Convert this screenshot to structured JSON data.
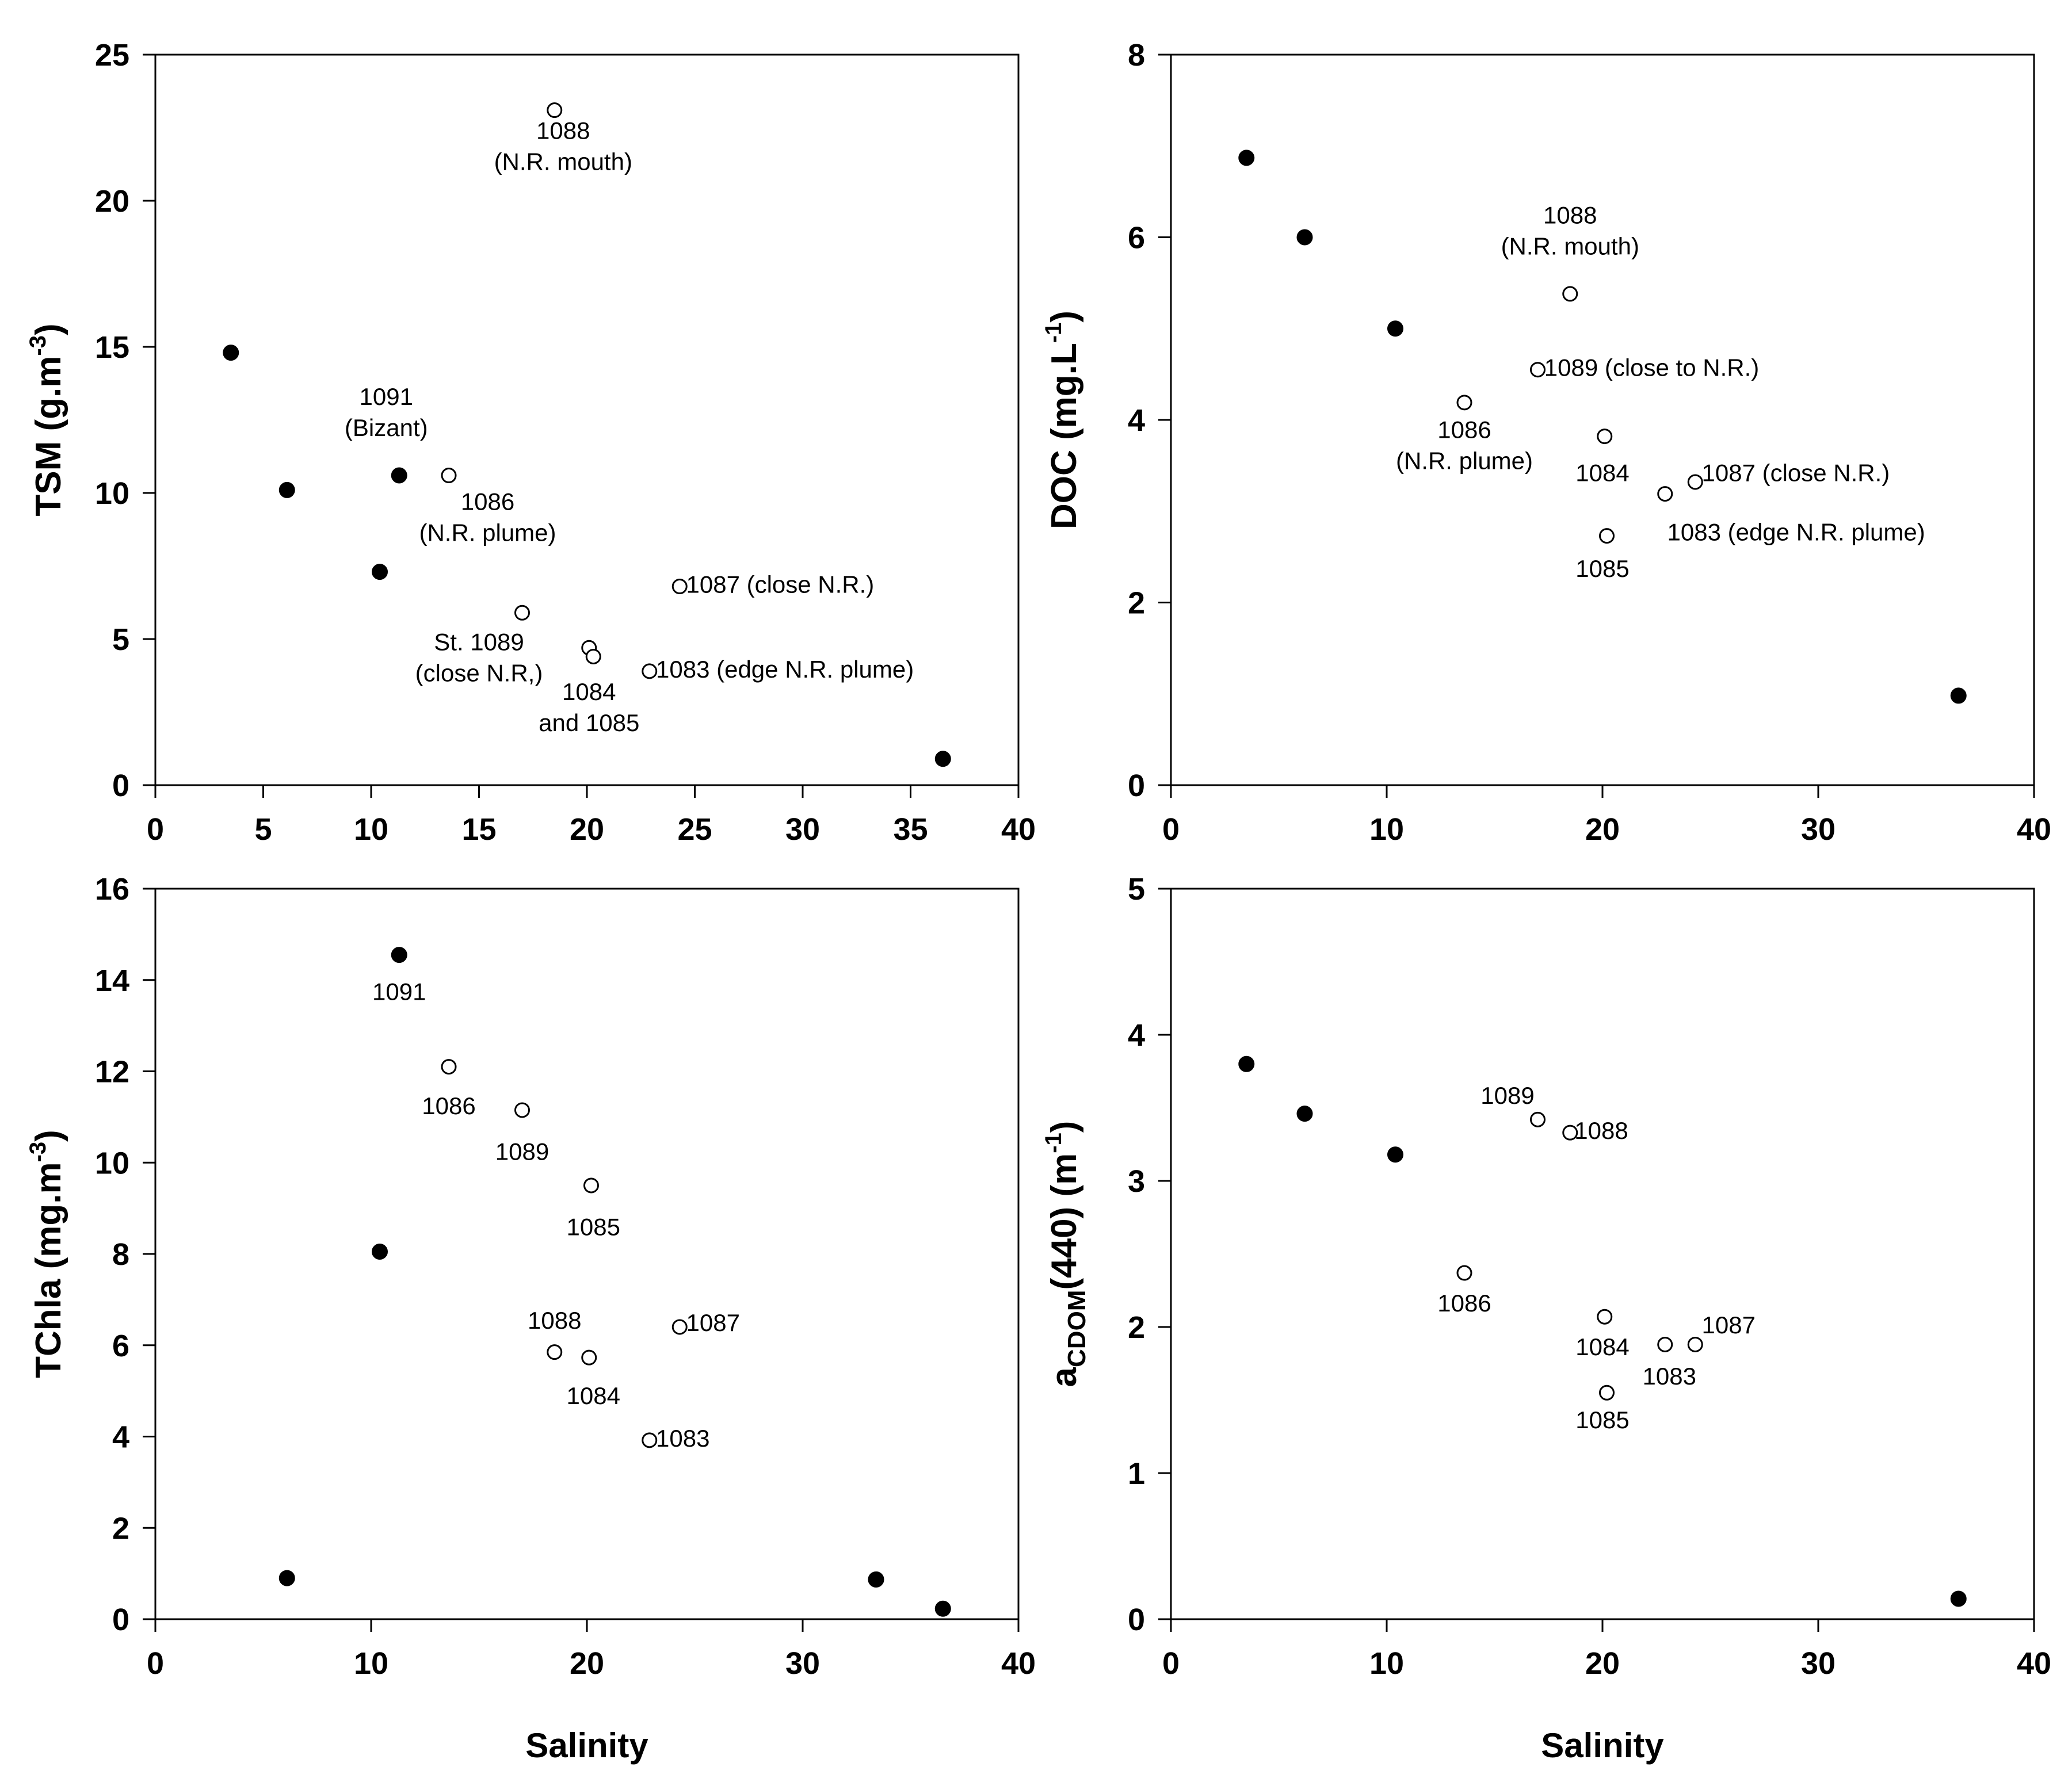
{
  "chart_data": [
    {
      "type": "scatter",
      "id": "tsm",
      "ylabel": "TSM (g.m",
      "ylabel_sup": "-3",
      "ylabel_suffix": ")",
      "xlabel": "",
      "xlim": [
        0,
        40
      ],
      "ylim": [
        0,
        25
      ],
      "xticks": [
        0,
        5,
        10,
        15,
        20,
        25,
        30,
        35,
        40
      ],
      "yticks": [
        0,
        5,
        10,
        15,
        20,
        25
      ],
      "series": [
        {
          "name": "filled",
          "marker": "filled",
          "points": [
            {
              "x": 3.5,
              "y": 14.8
            },
            {
              "x": 6.1,
              "y": 10.1
            },
            {
              "x": 10.4,
              "y": 7.3
            },
            {
              "x": 11.3,
              "y": 10.6
            },
            {
              "x": 36.5,
              "y": 0.9
            }
          ]
        },
        {
          "name": "open",
          "marker": "open",
          "points": [
            {
              "x": 18.5,
              "y": 23.1
            },
            {
              "x": 13.6,
              "y": 10.6
            },
            {
              "x": 17.0,
              "y": 5.9
            },
            {
              "x": 20.1,
              "y": 4.7
            },
            {
              "x": 20.3,
              "y": 4.4
            },
            {
              "x": 22.9,
              "y": 3.9
            },
            {
              "x": 24.3,
              "y": 6.8
            }
          ]
        }
      ],
      "annotations": [
        {
          "x": 18.9,
          "y": 21.8,
          "lines": [
            "1088",
            "(N.R. mouth)"
          ],
          "anchor": "middle"
        },
        {
          "x": 10.7,
          "y": 12.7,
          "lines": [
            "1091",
            "(Bizant)"
          ],
          "anchor": "middle"
        },
        {
          "x": 15.4,
          "y": 9.1,
          "lines": [
            "1086",
            "(N.R. plume)"
          ],
          "anchor": "middle"
        },
        {
          "x": 24.6,
          "y": 6.8,
          "lines": [
            "1087 (close N.R.)"
          ],
          "anchor": "start"
        },
        {
          "x": 15.0,
          "y": 4.3,
          "lines": [
            "St. 1089",
            "(close N.R,)"
          ],
          "anchor": "middle"
        },
        {
          "x": 20.1,
          "y": 2.6,
          "lines": [
            "1084",
            "and 1085"
          ],
          "anchor": "middle"
        },
        {
          "x": 23.2,
          "y": 3.9,
          "lines": [
            "1083 (edge N.R. plume)"
          ],
          "anchor": "start"
        }
      ]
    },
    {
      "type": "scatter",
      "id": "doc",
      "ylabel": "DOC (mg.L",
      "ylabel_sup": "-1",
      "ylabel_suffix": ")",
      "xlabel": "",
      "xlim": [
        0,
        40
      ],
      "ylim": [
        0,
        8
      ],
      "xticks": [
        0,
        10,
        20,
        30,
        40
      ],
      "yticks": [
        0,
        2,
        4,
        6,
        8
      ],
      "series": [
        {
          "name": "filled",
          "marker": "filled",
          "points": [
            {
              "x": 3.5,
              "y": 6.87
            },
            {
              "x": 6.2,
              "y": 6.0
            },
            {
              "x": 10.4,
              "y": 5.0
            },
            {
              "x": 36.5,
              "y": 0.98
            }
          ]
        },
        {
          "name": "open",
          "marker": "open",
          "points": [
            {
              "x": 18.5,
              "y": 5.38
            },
            {
              "x": 17.0,
              "y": 4.55
            },
            {
              "x": 13.6,
              "y": 4.19
            },
            {
              "x": 20.1,
              "y": 3.82
            },
            {
              "x": 24.3,
              "y": 3.32
            },
            {
              "x": 22.9,
              "y": 3.19
            },
            {
              "x": 20.2,
              "y": 2.73
            }
          ]
        }
      ],
      "annotations": [
        {
          "x": 18.5,
          "y": 6.05,
          "lines": [
            "1088",
            "(N.R. mouth)"
          ],
          "anchor": "middle"
        },
        {
          "x": 17.3,
          "y": 4.55,
          "lines": [
            "1089 (close to N.R.)"
          ],
          "anchor": "start"
        },
        {
          "x": 13.6,
          "y": 3.7,
          "lines": [
            "1086",
            "(N.R. plume)"
          ],
          "anchor": "middle"
        },
        {
          "x": 20.0,
          "y": 3.4,
          "lines": [
            "1084"
          ],
          "anchor": "middle"
        },
        {
          "x": 24.6,
          "y": 3.4,
          "lines": [
            "1087 (close N.R.)"
          ],
          "anchor": "start"
        },
        {
          "x": 23.0,
          "y": 2.75,
          "lines": [
            "1083 (edge N.R. plume)"
          ],
          "anchor": "start"
        },
        {
          "x": 20.0,
          "y": 2.35,
          "lines": [
            "1085"
          ],
          "anchor": "middle"
        }
      ]
    },
    {
      "type": "scatter",
      "id": "tchla",
      "ylabel": "TChla (mg.m",
      "ylabel_sup": "-3",
      "ylabel_suffix": ")",
      "xlabel": "Salinity",
      "xlim": [
        0,
        40
      ],
      "ylim": [
        0,
        16
      ],
      "xticks": [
        0,
        10,
        20,
        30,
        40
      ],
      "yticks": [
        0,
        2,
        4,
        6,
        8,
        10,
        12,
        14,
        16
      ],
      "series": [
        {
          "name": "filled",
          "marker": "filled",
          "points": [
            {
              "x": 11.3,
              "y": 14.55
            },
            {
              "x": 10.4,
              "y": 8.05
            },
            {
              "x": 6.1,
              "y": 0.9
            },
            {
              "x": 33.4,
              "y": 0.87
            },
            {
              "x": 36.5,
              "y": 0.23
            }
          ]
        },
        {
          "name": "open",
          "marker": "open",
          "points": [
            {
              "x": 13.6,
              "y": 12.1
            },
            {
              "x": 17.0,
              "y": 11.15
            },
            {
              "x": 20.2,
              "y": 9.5
            },
            {
              "x": 18.5,
              "y": 5.85
            },
            {
              "x": 20.1,
              "y": 5.73
            },
            {
              "x": 24.3,
              "y": 6.4
            },
            {
              "x": 22.9,
              "y": 3.92
            }
          ]
        }
      ],
      "annotations": [
        {
          "x": 11.3,
          "y": 13.7,
          "lines": [
            "1091"
          ],
          "anchor": "middle"
        },
        {
          "x": 13.6,
          "y": 11.2,
          "lines": [
            "1086"
          ],
          "anchor": "middle"
        },
        {
          "x": 17.0,
          "y": 10.2,
          "lines": [
            "1089"
          ],
          "anchor": "middle"
        },
        {
          "x": 20.3,
          "y": 8.55,
          "lines": [
            "1085"
          ],
          "anchor": "middle"
        },
        {
          "x": 18.5,
          "y": 6.5,
          "lines": [
            "1088"
          ],
          "anchor": "middle"
        },
        {
          "x": 20.3,
          "y": 4.85,
          "lines": [
            "1084"
          ],
          "anchor": "middle"
        },
        {
          "x": 24.6,
          "y": 6.45,
          "lines": [
            "1087"
          ],
          "anchor": "start"
        },
        {
          "x": 23.2,
          "y": 3.92,
          "lines": [
            "1083"
          ],
          "anchor": "start"
        }
      ]
    },
    {
      "type": "scatter",
      "id": "acdom",
      "ylabel": "a",
      "ylabel_sub": "CDOM",
      "ylabel_mid": "(440) (m",
      "ylabel_sup": "-1",
      "ylabel_suffix": ")",
      "xlabel": "Salinity",
      "xlim": [
        0,
        40
      ],
      "ylim": [
        0,
        5
      ],
      "xticks": [
        0,
        10,
        20,
        30,
        40
      ],
      "yticks": [
        0,
        1,
        2,
        3,
        4,
        5
      ],
      "series": [
        {
          "name": "filled",
          "marker": "filled",
          "points": [
            {
              "x": 3.5,
              "y": 3.8
            },
            {
              "x": 6.2,
              "y": 3.46
            },
            {
              "x": 10.4,
              "y": 3.18
            },
            {
              "x": 36.5,
              "y": 0.14
            }
          ]
        },
        {
          "name": "open",
          "marker": "open",
          "points": [
            {
              "x": 17.0,
              "y": 3.42
            },
            {
              "x": 18.5,
              "y": 3.33
            },
            {
              "x": 13.6,
              "y": 2.37
            },
            {
              "x": 20.1,
              "y": 2.07
            },
            {
              "x": 22.9,
              "y": 1.88
            },
            {
              "x": 24.3,
              "y": 1.88
            },
            {
              "x": 20.2,
              "y": 1.55
            }
          ]
        }
      ],
      "annotations": [
        {
          "x": 15.6,
          "y": 3.57,
          "lines": [
            "1089"
          ],
          "anchor": "middle"
        },
        {
          "x": 18.7,
          "y": 3.33,
          "lines": [
            "1088"
          ],
          "anchor": "start"
        },
        {
          "x": 13.6,
          "y": 2.15,
          "lines": [
            "1086"
          ],
          "anchor": "middle"
        },
        {
          "x": 20.0,
          "y": 1.85,
          "lines": [
            "1084"
          ],
          "anchor": "middle"
        },
        {
          "x": 23.1,
          "y": 1.65,
          "lines": [
            "1083"
          ],
          "anchor": "middle"
        },
        {
          "x": 24.6,
          "y": 2.0,
          "lines": [
            "1087"
          ],
          "anchor": "start"
        },
        {
          "x": 20.0,
          "y": 1.35,
          "lines": [
            "1085"
          ],
          "anchor": "middle"
        }
      ]
    }
  ]
}
